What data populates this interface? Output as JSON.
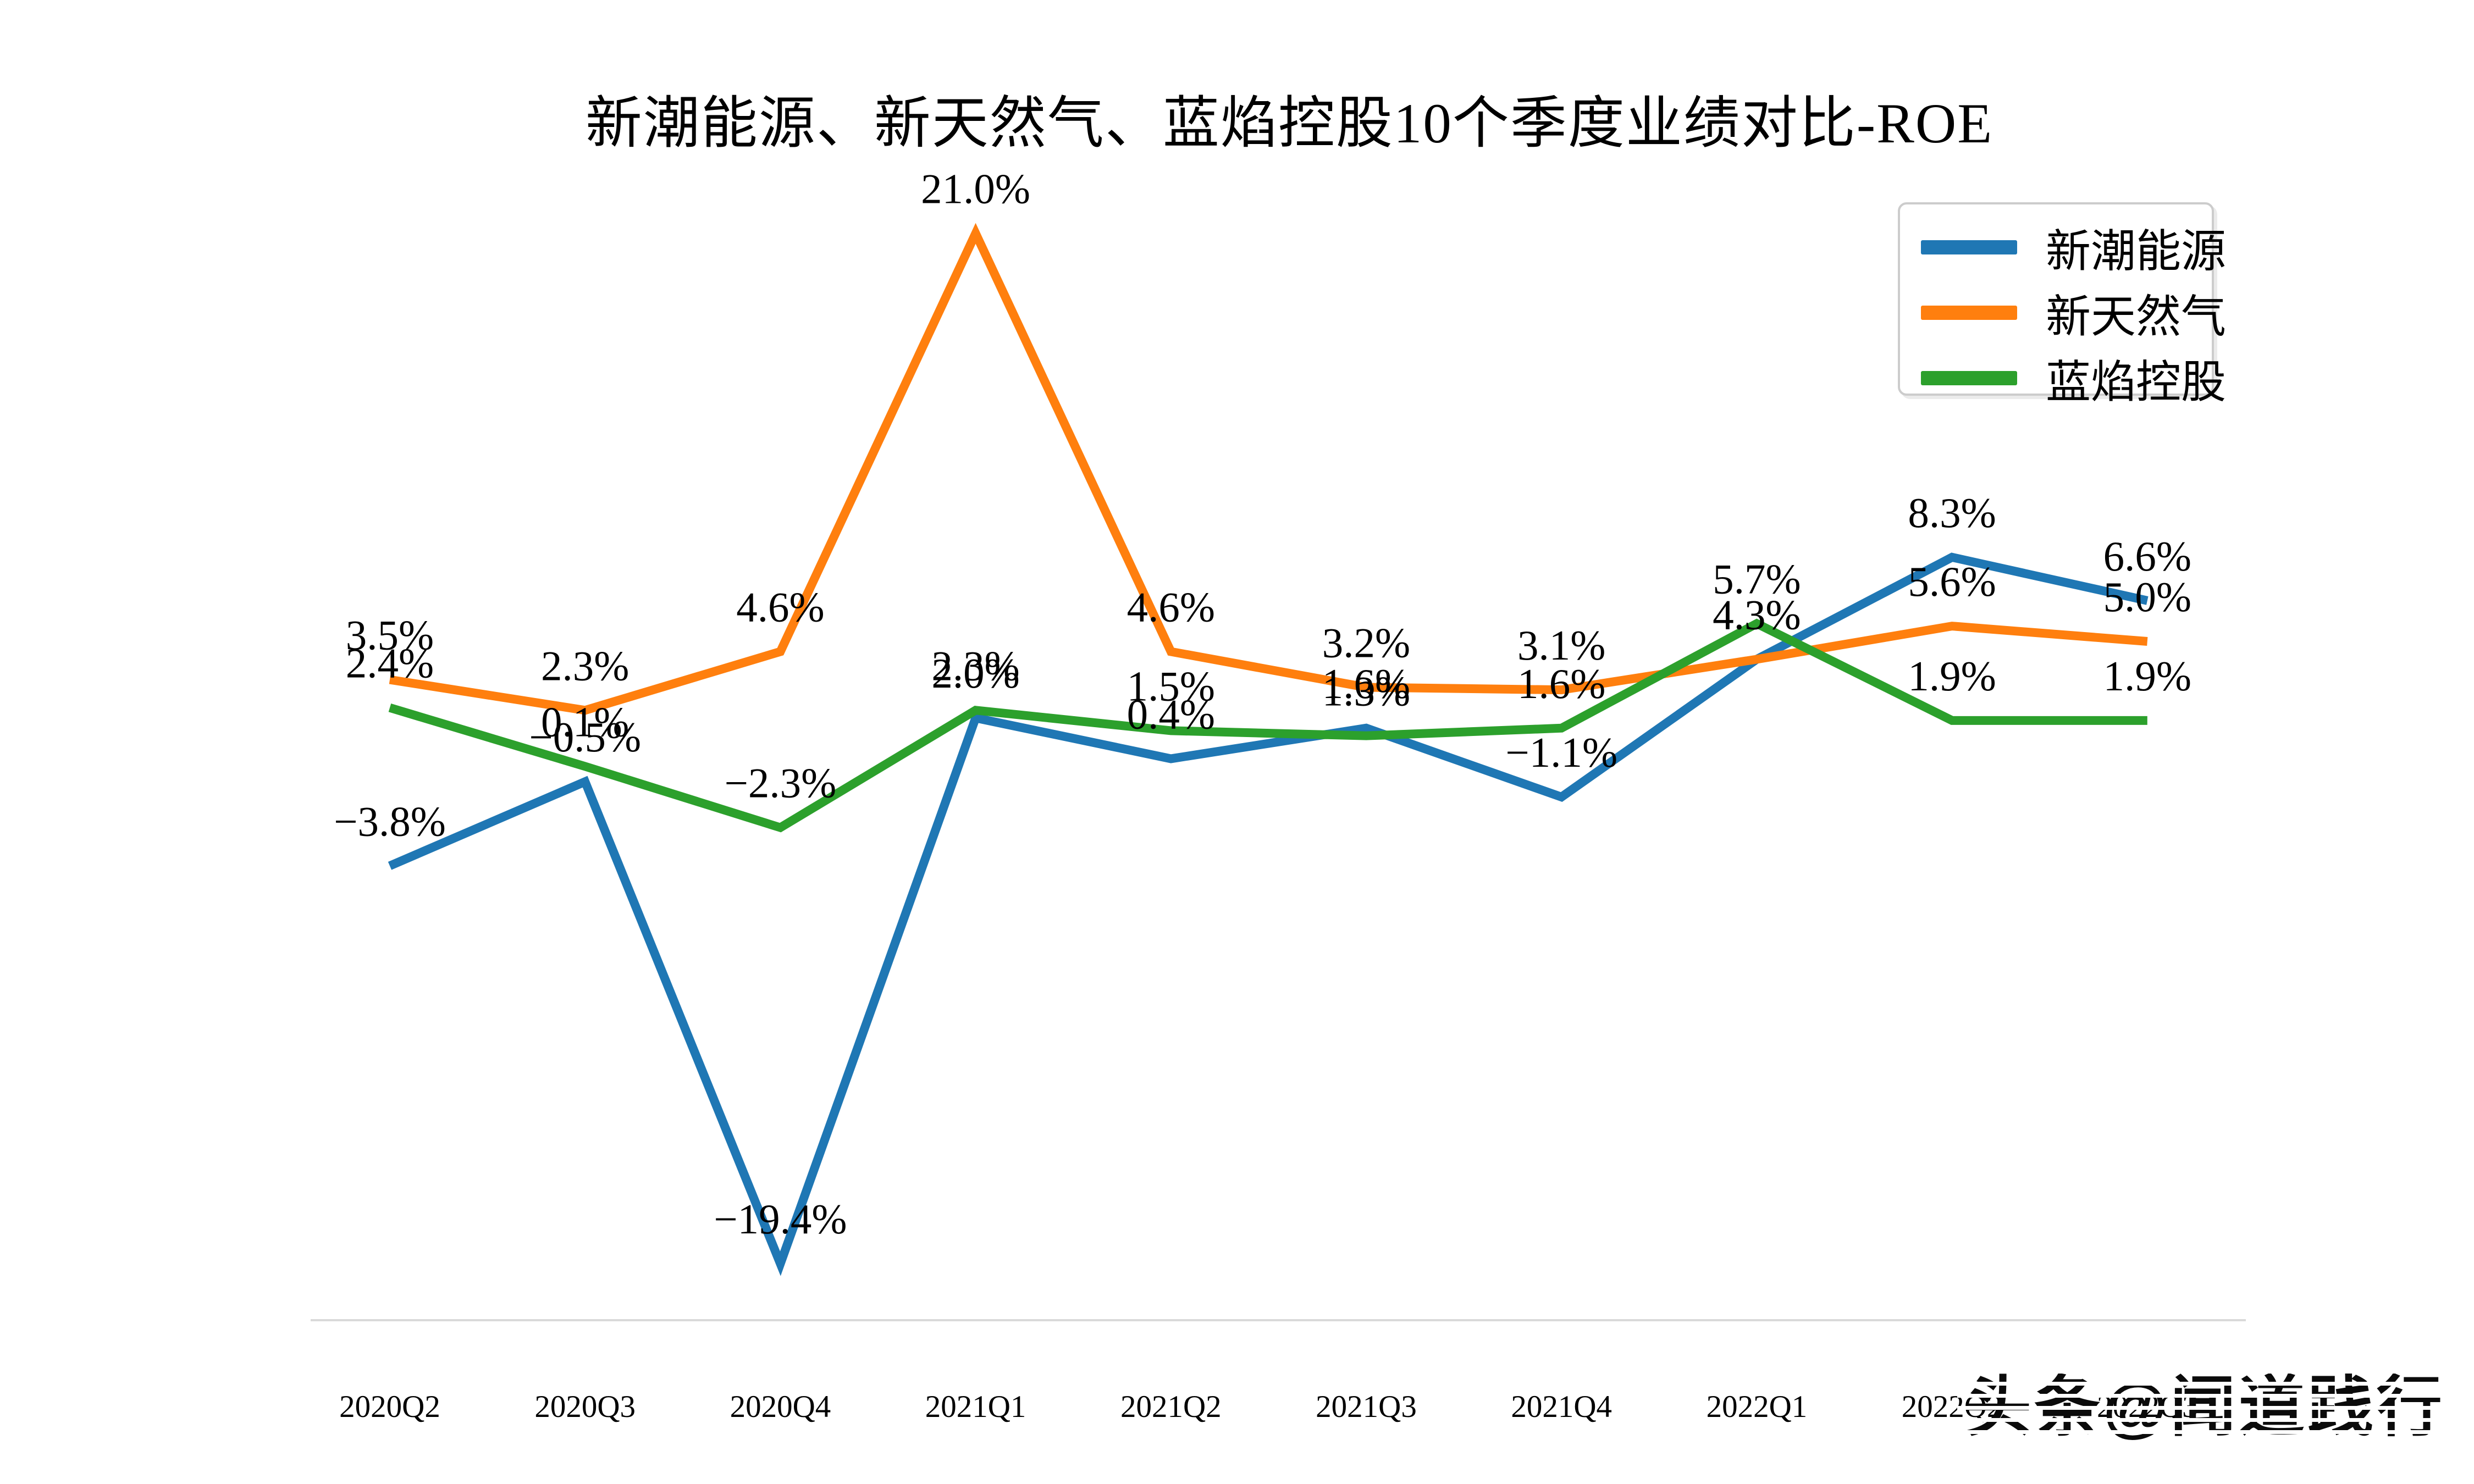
{
  "title": "新潮能源、新天然气、蓝焰控股10个季度业绩对比-ROE",
  "watermark": "头条@闻道践行",
  "colors": {
    "series_blue": "#1f77b4",
    "series_orange": "#ff7f0e",
    "series_green": "#2ca02c",
    "axis_line": "#d9d9d9",
    "label_text": "#000000"
  },
  "chart_data": {
    "type": "line",
    "title": "新潮能源、新天然气、蓝焰控股10个季度业绩对比-ROE",
    "categories": [
      "2020Q2",
      "2020Q3",
      "2020Q4",
      "2021Q1",
      "2021Q2",
      "2021Q3",
      "2021Q4",
      "2022Q1",
      "2022Q2",
      "2022Q3"
    ],
    "series": [
      {
        "name": "新潮能源",
        "color": "#1f77b4",
        "values": [
          -3.8,
          -0.5,
          -19.4,
          2.0,
          0.4,
          1.6,
          -1.1,
          4.3,
          8.3,
          6.6
        ]
      },
      {
        "name": "新天然气",
        "color": "#ff7f0e",
        "values": [
          3.5,
          2.3,
          4.6,
          21.0,
          4.6,
          3.2,
          3.1,
          4.3,
          5.6,
          5.0
        ]
      },
      {
        "name": "蓝焰控股",
        "color": "#2ca02c",
        "values": [
          2.4,
          0.1,
          -2.3,
          2.3,
          1.5,
          1.3,
          1.6,
          5.7,
          1.9,
          1.9
        ]
      }
    ],
    "label_format": "one_decimal_percent",
    "xlabel": "",
    "ylabel": "",
    "ylim": [
      -22,
      23
    ],
    "grid": false,
    "y_axis_visible": false,
    "legend_position": "top-right",
    "annotations": "every point labeled with its percent value"
  }
}
